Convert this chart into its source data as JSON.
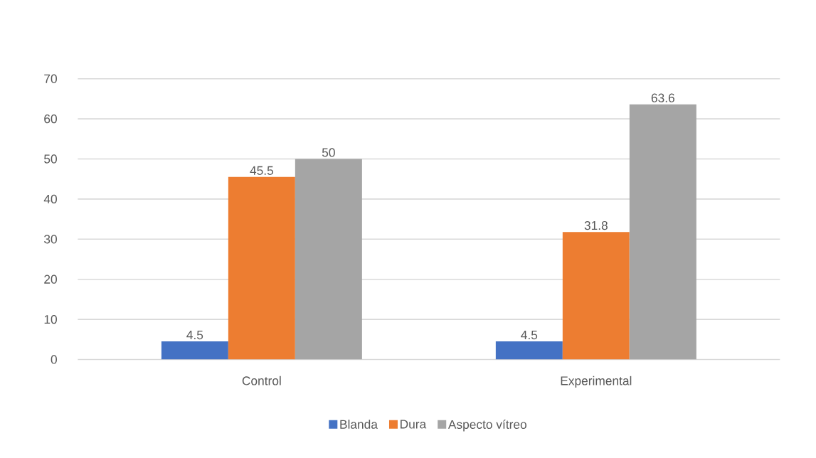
{
  "chart_data": {
    "type": "bar",
    "categories": [
      "Control",
      "Experimental"
    ],
    "series": [
      {
        "name": "Blanda",
        "color": "#4472c4",
        "values": [
          4.5,
          4.5
        ]
      },
      {
        "name": "Dura",
        "color": "#ed7d31",
        "values": [
          45.5,
          31.8
        ]
      },
      {
        "name": "Aspecto vítreo",
        "color": "#a5a5a5",
        "values": [
          50,
          63.6
        ]
      }
    ],
    "ylim": [
      0,
      70
    ],
    "yticks": [
      0,
      10,
      20,
      30,
      40,
      50,
      60,
      70
    ],
    "grid": "y",
    "legend": "bottom",
    "data_labels": true
  }
}
